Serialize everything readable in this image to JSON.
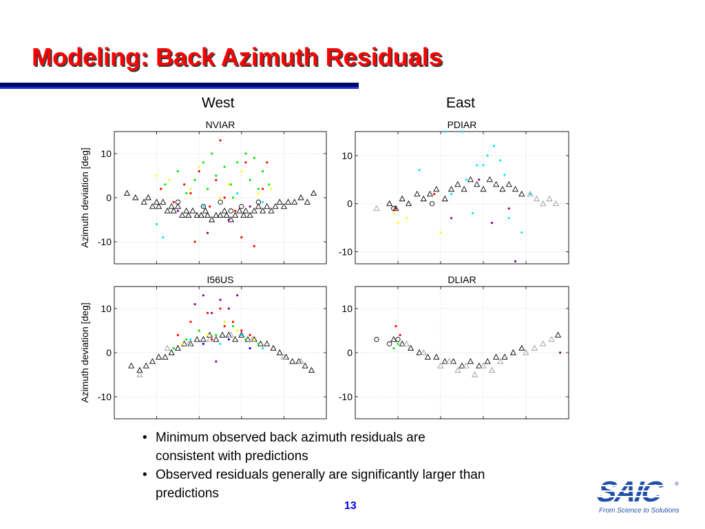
{
  "slide": {
    "title": "Modeling: Back Azimuth Residuals",
    "column_left": "West",
    "column_right": "East",
    "bullets": [
      "Minimum observed back azimuth residuals are consistent with predictions",
      "Observed residuals generally are significantly larger than predictions"
    ],
    "page_number": "13",
    "logo": {
      "text": "SAIC",
      "tagline": "From Science to Solutions",
      "mark": "®"
    }
  },
  "colors": {
    "title": "#ff0000",
    "accent": "#1f4fa8",
    "series_model": "#000000",
    "series_model_alt": "#999999",
    "observed": [
      "#ff0000",
      "#00ee00",
      "#ffff00",
      "#00e5ee",
      "#8b008b",
      "#0000ff"
    ]
  },
  "chart_data": [
    {
      "type": "scatter",
      "title": "NVIAR",
      "ylabel": "Azimuth deviation [deg]",
      "xlabel": "",
      "ylim": [
        -15,
        15
      ],
      "yticks": [
        -10,
        0,
        10
      ],
      "grid": true,
      "series": [
        {
          "marker": "triangle",
          "color": "#000000",
          "x": [
            0.06,
            0.1,
            0.14,
            0.16,
            0.18,
            0.2,
            0.21,
            0.23,
            0.25,
            0.27,
            0.28,
            0.3,
            0.32,
            0.34,
            0.35,
            0.37,
            0.39,
            0.41,
            0.43,
            0.44,
            0.46,
            0.48,
            0.5,
            0.52,
            0.53,
            0.55,
            0.57,
            0.59,
            0.61,
            0.62,
            0.64,
            0.66,
            0.68,
            0.7,
            0.72,
            0.74,
            0.76,
            0.78,
            0.8,
            0.82,
            0.85,
            0.88,
            0.91,
            0.94
          ],
          "y": [
            1,
            0,
            -1,
            0,
            -2,
            -1,
            -2,
            -1,
            -3,
            -2,
            -3,
            -2,
            -4,
            -3,
            -4,
            -3,
            -4,
            -4,
            -3,
            -4,
            -5,
            -4,
            -4,
            -3,
            -4,
            -5,
            -4,
            -3,
            -4,
            -3,
            -4,
            -3,
            -2,
            -3,
            -2,
            -3,
            -2,
            -1,
            -2,
            -1,
            -1,
            0,
            -1,
            1
          ]
        },
        {
          "marker": "circle",
          "color": "#000000",
          "x": [
            0.3,
            0.42,
            0.5,
            0.55,
            0.6,
            0.68
          ],
          "y": [
            -1,
            -2,
            -1,
            -3,
            -2,
            -1
          ]
        },
        {
          "marker": "dot",
          "color": "#ff0000",
          "x": [
            0.22,
            0.28,
            0.33,
            0.38,
            0.4,
            0.45,
            0.5,
            0.52,
            0.57,
            0.62,
            0.66,
            0.7,
            0.72,
            0.36,
            0.6,
            0.48
          ],
          "y": [
            2,
            -1,
            3,
            -10,
            6,
            -2,
            13,
            0,
            -3,
            8,
            -11,
            2,
            8,
            1,
            -9,
            4
          ]
        },
        {
          "marker": "dot",
          "color": "#00ee00",
          "x": [
            0.24,
            0.3,
            0.34,
            0.38,
            0.42,
            0.44,
            0.48,
            0.52,
            0.55,
            0.58,
            0.62,
            0.64,
            0.66,
            0.68,
            0.7,
            0.73,
            0.46,
            0.56
          ],
          "y": [
            3,
            6,
            1,
            4,
            8,
            2,
            5,
            7,
            3,
            8,
            10,
            4,
            9,
            2,
            6,
            3,
            10,
            0
          ]
        },
        {
          "marker": "dot",
          "color": "#ffff00",
          "x": [
            0.2,
            0.26,
            0.36,
            0.4,
            0.5,
            0.54,
            0.6,
            0.68,
            0.74
          ],
          "y": [
            5,
            4,
            2,
            7,
            0,
            3,
            6,
            1,
            2
          ]
        },
        {
          "marker": "dot",
          "color": "#00e5ee",
          "x": [
            0.2,
            0.23,
            0.42,
            0.58,
            0.7
          ],
          "y": [
            -6,
            -9,
            -2,
            1,
            -1
          ]
        },
        {
          "marker": "dot",
          "color": "#8b008b",
          "x": [
            0.3,
            0.44,
            0.54,
            0.64
          ],
          "y": [
            -3,
            -8,
            -5,
            -2
          ]
        }
      ]
    },
    {
      "type": "scatter",
      "title": "PDIAR",
      "ylabel": "",
      "xlabel": "",
      "ylim": [
        -12.5,
        15
      ],
      "yticks": [
        -10,
        0,
        10
      ],
      "grid": true,
      "series": [
        {
          "marker": "triangle",
          "color": "#000000",
          "x": [
            0.16,
            0.19,
            0.22,
            0.25,
            0.29,
            0.32,
            0.35,
            0.38,
            0.42,
            0.45,
            0.48,
            0.51,
            0.54,
            0.57,
            0.6,
            0.63,
            0.66,
            0.69,
            0.72,
            0.75,
            0.78
          ],
          "y": [
            0,
            -1,
            1,
            0,
            2,
            1,
            2,
            3,
            1,
            3,
            4,
            3,
            5,
            4,
            3,
            5,
            4,
            3,
            4,
            3,
            2
          ]
        },
        {
          "marker": "triangle",
          "color": "#999999",
          "x": [
            0.1,
            0.82,
            0.85,
            0.88,
            0.91,
            0.94
          ],
          "y": [
            -1,
            2,
            1,
            0,
            1,
            0
          ]
        },
        {
          "marker": "circle",
          "color": "#000000",
          "x": [
            0.18,
            0.36
          ],
          "y": [
            -1,
            0
          ]
        },
        {
          "marker": "dot",
          "color": "#00e5ee",
          "x": [
            0.42,
            0.5,
            0.52,
            0.57,
            0.62,
            0.65,
            0.68,
            0.72,
            0.78,
            0.45,
            0.55,
            0.6,
            0.7,
            0.82,
            0.3
          ],
          "y": [
            15,
            15,
            5,
            8,
            10,
            12,
            9,
            -3,
            -6,
            2,
            -2,
            8,
            6,
            2,
            7
          ]
        },
        {
          "marker": "dot",
          "color": "#ffff00",
          "x": [
            0.18,
            0.2,
            0.24,
            0.4
          ],
          "y": [
            -2,
            -4,
            -3,
            -6
          ]
        },
        {
          "marker": "dot",
          "color": "#8b008b",
          "x": [
            0.45,
            0.58,
            0.64,
            0.72,
            0.75
          ],
          "y": [
            -3,
            5,
            -4,
            -1,
            -12
          ]
        },
        {
          "marker": "dot",
          "color": "#ff0000",
          "x": [
            0.19,
            0.37
          ],
          "y": [
            -1,
            2
          ]
        }
      ]
    },
    {
      "type": "scatter",
      "title": "I56US",
      "ylabel": "Azimuth deviation [deg]",
      "xlabel": "",
      "ylim": [
        -15,
        15
      ],
      "yticks": [
        -10,
        0,
        10
      ],
      "grid": true,
      "series": [
        {
          "marker": "triangle",
          "color": "#000000",
          "x": [
            0.08,
            0.12,
            0.15,
            0.18,
            0.21,
            0.24,
            0.27,
            0.3,
            0.33,
            0.36,
            0.39,
            0.42,
            0.45,
            0.48,
            0.51,
            0.54,
            0.57,
            0.6,
            0.63,
            0.66,
            0.69,
            0.72,
            0.75,
            0.78,
            0.81,
            0.84,
            0.87,
            0.9,
            0.93
          ],
          "y": [
            -3,
            -4,
            -3,
            -2,
            -1,
            -1,
            0,
            1,
            2,
            2,
            3,
            3,
            4,
            3,
            4,
            4,
            3,
            4,
            3,
            3,
            2,
            2,
            1,
            0,
            -1,
            -2,
            -2,
            -3,
            -4
          ]
        },
        {
          "marker": "triangle",
          "color": "#999999",
          "x": [
            0.12,
            0.25,
            0.35,
            0.45,
            0.55,
            0.65,
            0.8,
            0.88
          ],
          "y": [
            -5,
            1,
            2,
            3,
            4,
            3,
            -1,
            -2
          ]
        },
        {
          "marker": "dot",
          "color": "#ff0000",
          "x": [
            0.3,
            0.36,
            0.4,
            0.44,
            0.46,
            0.5,
            0.52,
            0.56,
            0.6,
            0.64
          ],
          "y": [
            4,
            7,
            5,
            9,
            3,
            10,
            6,
            7,
            5,
            4
          ]
        },
        {
          "marker": "dot",
          "color": "#8b008b",
          "x": [
            0.38,
            0.42,
            0.46,
            0.5,
            0.54,
            0.58,
            0.48
          ],
          "y": [
            11,
            13,
            9,
            12,
            10,
            13,
            -2
          ]
        },
        {
          "marker": "dot",
          "color": "#00ee00",
          "x": [
            0.28,
            0.34,
            0.4,
            0.48,
            0.56,
            0.62,
            0.68
          ],
          "y": [
            1,
            3,
            5,
            4,
            6,
            3,
            2
          ]
        },
        {
          "marker": "dot",
          "color": "#ffff00",
          "x": [
            0.32,
            0.44,
            0.52,
            0.58,
            0.66
          ],
          "y": [
            2,
            4,
            7,
            5,
            3
          ]
        },
        {
          "marker": "dot",
          "color": "#00e5ee",
          "x": [
            0.36,
            0.5,
            0.6,
            0.7
          ],
          "y": [
            3,
            2,
            4,
            1
          ]
        },
        {
          "marker": "dot",
          "color": "#0000ff",
          "x": [
            0.42,
            0.54,
            0.64
          ],
          "y": [
            2,
            3,
            1
          ]
        }
      ]
    },
    {
      "type": "scatter",
      "title": "DLIAR",
      "ylabel": "",
      "xlabel": "",
      "ylim": [
        -15,
        15
      ],
      "yticks": [
        -10,
        0,
        10
      ],
      "grid": true,
      "series": [
        {
          "marker": "triangle",
          "color": "#000000",
          "x": [
            0.18,
            0.22,
            0.26,
            0.3,
            0.34,
            0.38,
            0.42,
            0.46,
            0.5,
            0.54,
            0.58,
            0.62,
            0.66,
            0.7,
            0.74,
            0.78,
            0.95
          ],
          "y": [
            3,
            2,
            1,
            0,
            -1,
            -1,
            -2,
            -2,
            -3,
            -2,
            -3,
            -2,
            -1,
            -1,
            0,
            1,
            4
          ]
        },
        {
          "marker": "triangle",
          "color": "#999999",
          "x": [
            0.24,
            0.32,
            0.4,
            0.44,
            0.48,
            0.52,
            0.56,
            0.6,
            0.64,
            0.68,
            0.8,
            0.84,
            0.88,
            0.92
          ],
          "y": [
            2,
            0,
            -3,
            -2,
            -4,
            -3,
            -5,
            -3,
            -4,
            -2,
            0,
            1,
            2,
            3
          ]
        },
        {
          "marker": "circle",
          "color": "#000000",
          "x": [
            0.1,
            0.16,
            0.2
          ],
          "y": [
            3,
            2,
            3
          ]
        },
        {
          "marker": "dot",
          "color": "#ff0000",
          "x": [
            0.19,
            0.21
          ],
          "y": [
            6,
            4
          ]
        },
        {
          "marker": "dot",
          "color": "#00ee00",
          "x": [
            0.18,
            0.2
          ],
          "y": [
            1,
            2
          ]
        },
        {
          "marker": "dot",
          "color": "#8b008b",
          "x": [
            0.96
          ],
          "y": [
            0
          ]
        }
      ]
    }
  ]
}
